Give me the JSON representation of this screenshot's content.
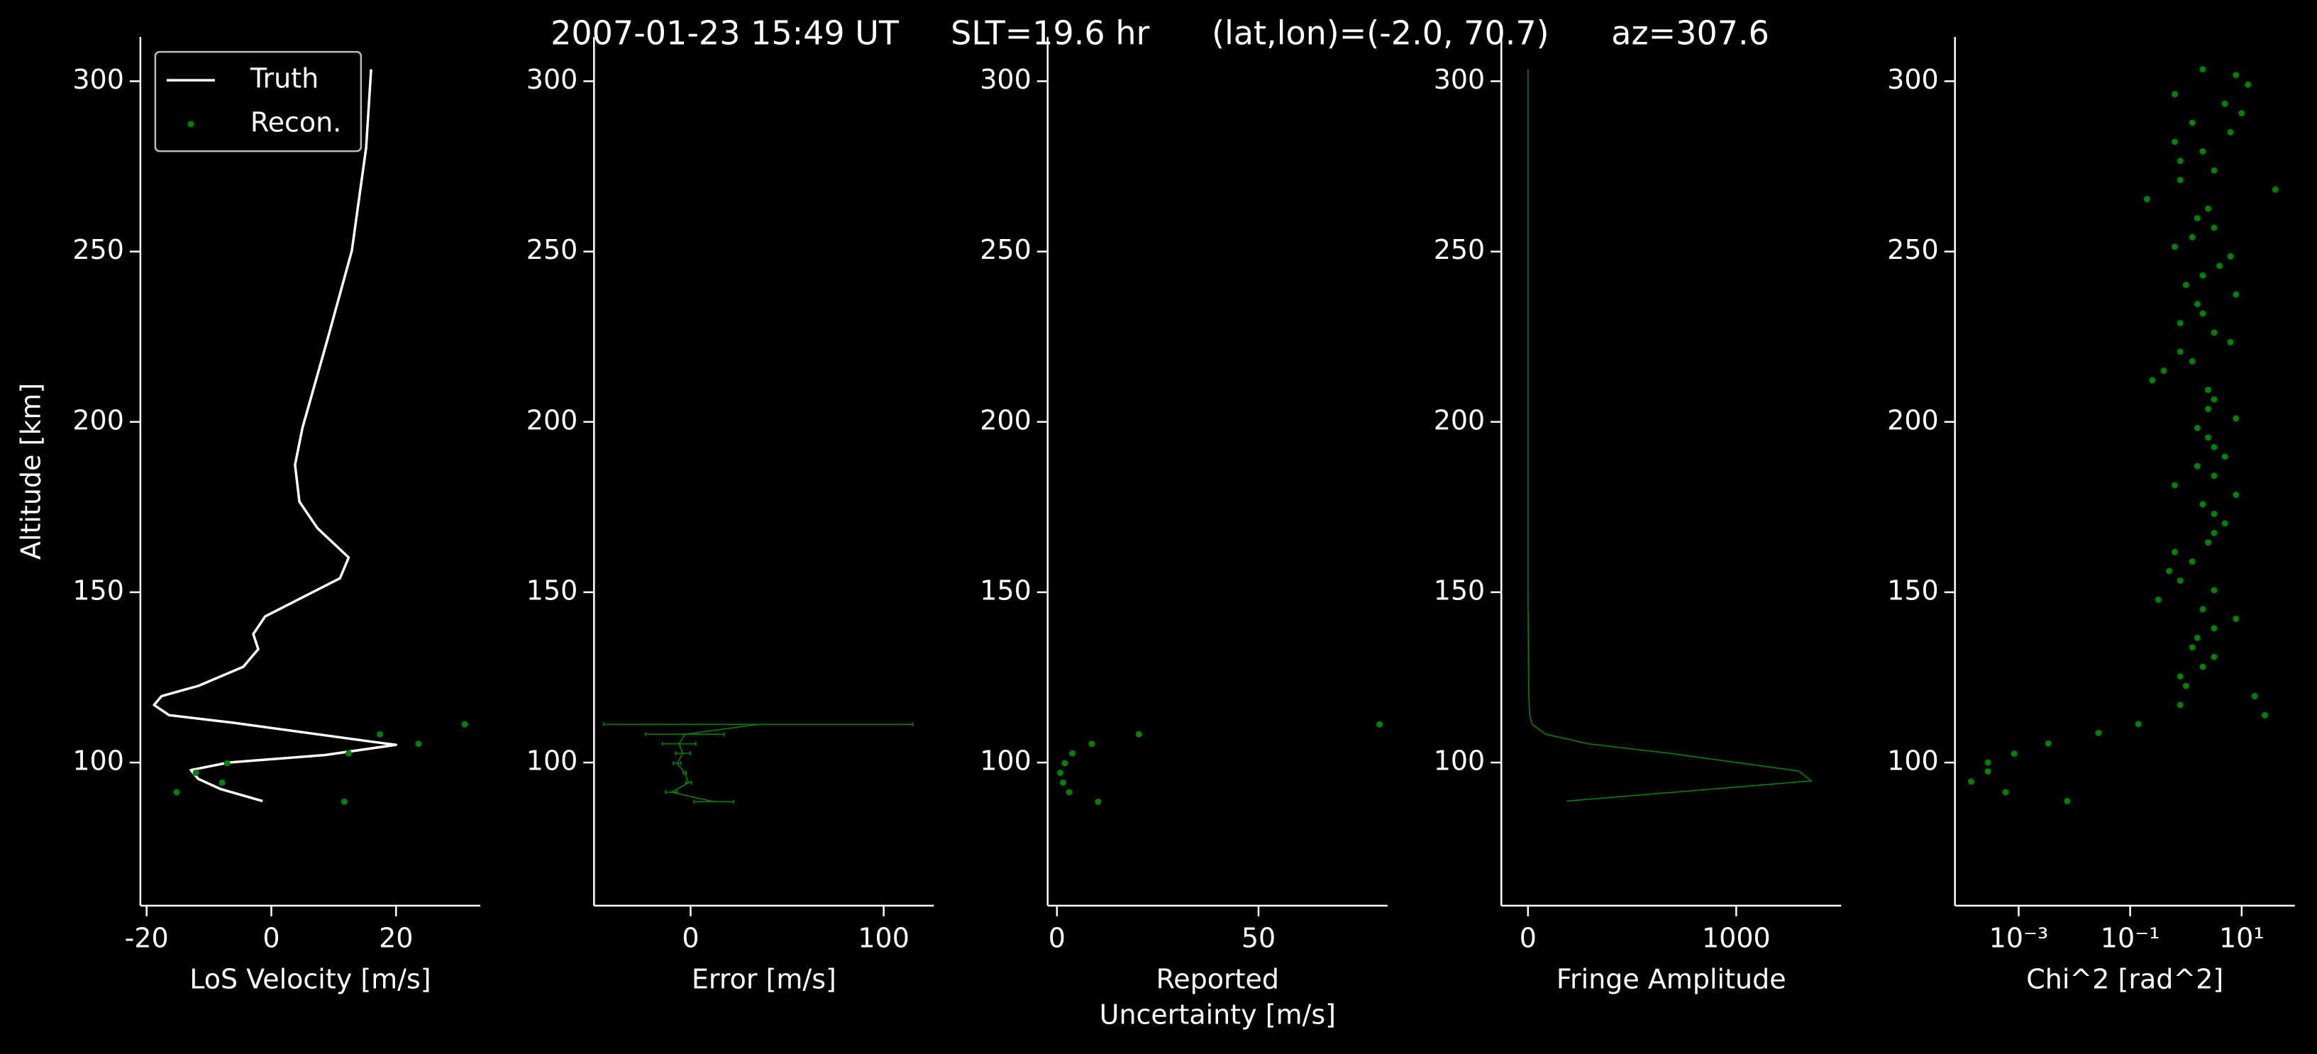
{
  "title": "2007-01-23 15:49 UT     SLT=19.6 hr      (lat,lon)=(-2.0, 70.7)      az=307.6",
  "chart_data": [
    {
      "type": "line",
      "xlabel": "LoS Velocity [m/s]",
      "ylabel": "Altitude [km]",
      "xlim": [
        -21,
        33.5
      ],
      "xticks": [
        -20,
        0,
        20
      ],
      "ylim": [
        58,
        313
      ],
      "yticks": [
        100,
        150,
        200,
        250,
        300
      ],
      "legend": "upper left",
      "series": [
        {
          "name": "Truth",
          "kind": "line",
          "color": "#ffffff",
          "x": [
            16,
            15.2,
            12.9,
            9,
            5,
            3.8,
            4.5,
            7.4,
            12.4,
            11,
            5,
            -1,
            -2.9,
            -2.1,
            -4.5,
            -11.7,
            -17.6,
            -18.8,
            -16.4,
            -6.2,
            16.2,
            20,
            8.6,
            -6.9,
            -12.9,
            -11.7,
            -8.1,
            -1.4
          ],
          "y": [
            303.5,
            280.5,
            250.2,
            224.2,
            198.3,
            187.4,
            176.6,
            168.8,
            160.2,
            154.1,
            148.5,
            142.9,
            137.7,
            133.3,
            128.1,
            122.5,
            119.5,
            116.9,
            113.9,
            111.7,
            106.1,
            105.2,
            102.2,
            100,
            97.8,
            95.2,
            92.2,
            88.7
          ]
        },
        {
          "name": "Recon.",
          "kind": "points",
          "color": "#008000",
          "x": [
            31,
            17.4,
            23.6,
            12.4,
            -7.1,
            -12.1,
            -7.9,
            -15.2,
            11.7
          ],
          "y": [
            111.2,
            108.3,
            105.5,
            102.7,
            99.8,
            97,
            94.1,
            91.3,
            88.5
          ]
        }
      ]
    },
    {
      "type": "errorbar",
      "xlabel": "Error [m/s]",
      "xlim": [
        -50,
        126
      ],
      "xticks": [
        0,
        100
      ],
      "ylim": [
        58,
        313
      ],
      "yticks": [
        100,
        150,
        200,
        250,
        300
      ],
      "series": [
        {
          "kind": "errorbar",
          "color": "#008000",
          "x": [
            35,
            -3,
            -6,
            -4,
            -7,
            -3,
            -1,
            -10,
            12
          ],
          "errors": [
            80,
            20.3,
            8.6,
            3.8,
            1.9,
            0.8,
            1.5,
            3,
            10.2
          ],
          "y": [
            111.2,
            108.3,
            105.5,
            102.7,
            99.8,
            97,
            94.1,
            91.3,
            88.5
          ]
        }
      ]
    },
    {
      "type": "scatter",
      "xlabel": [
        "Reported",
        "Uncertainty [m/s]"
      ],
      "xlim": [
        -2.3,
        82
      ],
      "xticks": [
        0,
        50
      ],
      "ylim": [
        58,
        313
      ],
      "yticks": [
        100,
        150,
        200,
        250,
        300
      ],
      "series": [
        {
          "kind": "points",
          "color": "#008000",
          "x": [
            80,
            20.3,
            8.6,
            3.8,
            1.9,
            0.8,
            1.5,
            3,
            10.2
          ],
          "y": [
            111.2,
            108.3,
            105.5,
            102.7,
            99.8,
            97,
            94.1,
            91.3,
            88.5
          ]
        }
      ]
    },
    {
      "type": "line",
      "xlabel": "Fringe Amplitude",
      "xlim": [
        -128,
        1504
      ],
      "xticks": [
        0,
        1000
      ],
      "ylim": [
        58,
        313
      ],
      "yticks": [
        100,
        150,
        200,
        250,
        300
      ],
      "series": [
        {
          "kind": "line",
          "color": "#008000",
          "x": [
            0,
            0,
            0,
            0,
            3,
            8,
            20,
            85,
            290,
            680,
            1300,
            1360,
            185
          ],
          "y": [
            303.5,
            250,
            200,
            150,
            120,
            114,
            111.2,
            108.3,
            105.5,
            102.7,
            97.5,
            94.6,
            88.7
          ]
        }
      ]
    },
    {
      "type": "scatter",
      "xlabel": "Chi^2 [rad^2]",
      "xscale": "log",
      "xlim": [
        7.2e-05,
        90
      ],
      "xticks": [
        {
          "value": 0.001,
          "label": "10⁻³"
        },
        {
          "value": 0.1,
          "label": "10⁻¹"
        },
        {
          "value": 10,
          "label": "10¹"
        }
      ],
      "ylim": [
        58,
        313
      ],
      "yticks": [
        100,
        150,
        200,
        250,
        300
      ],
      "series": [
        {
          "kind": "points",
          "color": "#008000",
          "x": [
            0.00014,
            0.00028,
            0.00028,
            0.00083,
            0.0034,
            0.027,
            0.14,
            17,
            26,
            0.00058,
            0.0074,
            0.79,
            1.0,
            0.79,
            2.0,
            3.2,
            1.3,
            1.6,
            3.2,
            7.9,
            2.0,
            0.32,
            3.2,
            0.79,
            0.5,
            1.3,
            0.63,
            2.5,
            3.2,
            5.0,
            3.2,
            2.0,
            7.9,
            0.63,
            3.2,
            1.6,
            5.0,
            3.2,
            2.5,
            1.6,
            7.9,
            2.5,
            3.2,
            2.5,
            0.25,
            0.4,
            1.3,
            0.79,
            6.3,
            3.2,
            0.79,
            2.0,
            1.6,
            7.9,
            1.0,
            2.0,
            4.0,
            6.3,
            0.63,
            1.3,
            3.2,
            1.6,
            2.5,
            0.2,
            40,
            0.79,
            3.2,
            0.79,
            2.0,
            0.63,
            6.3,
            1.3,
            10,
            5.0,
            0.63,
            13,
            7.9,
            2.0
          ],
          "y": [
            94.4,
            97.4,
            100,
            102.6,
            105.6,
            108.7,
            111.3,
            119.5,
            113.9,
            91.3,
            88.7,
            116.9,
            122.5,
            125.3,
            128.1,
            131,
            133.8,
            136.6,
            139.4,
            142.2,
            145,
            147.8,
            150.6,
            153.4,
            156.2,
            159,
            161.8,
            164.6,
            167.4,
            170.2,
            173,
            175.8,
            178.6,
            181.4,
            184.2,
            187,
            189.8,
            192.6,
            195.4,
            198.2,
            201,
            203.8,
            206.6,
            209.4,
            212.2,
            215,
            217.8,
            220.6,
            223.4,
            226.2,
            229,
            231.8,
            234.6,
            237.4,
            240.2,
            243,
            245.8,
            248.6,
            251.4,
            254.2,
            257,
            259.8,
            262.6,
            265.4,
            268.2,
            271,
            273.8,
            276.6,
            279.4,
            282.2,
            285,
            287.8,
            290.6,
            293.4,
            296.2,
            299,
            301.8,
            303.5
          ]
        }
      ]
    }
  ]
}
